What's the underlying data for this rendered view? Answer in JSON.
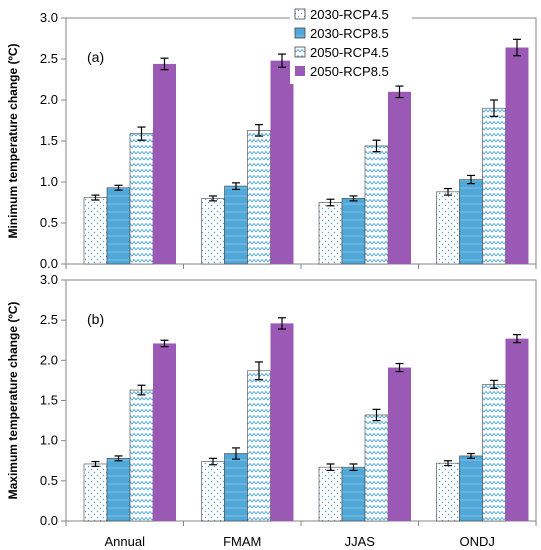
{
  "chart_data": [
    {
      "type": "bar",
      "panel_label": "(a)",
      "ylabel": "Minimum temperature change (ºC)",
      "ylim": [
        0,
        3.0
      ],
      "yticks": [
        "0.0",
        "0.5",
        "1.0",
        "1.5",
        "2.0",
        "2.5",
        "3.0"
      ],
      "grid": false,
      "categories": [
        "Annual",
        "FMAM",
        "JJAS",
        "ONDJ"
      ],
      "series": [
        {
          "name": "2030-RCP4.5",
          "values": [
            0.81,
            0.8,
            0.75,
            0.88
          ],
          "errors": [
            0.03,
            0.03,
            0.04,
            0.04
          ]
        },
        {
          "name": "2030-RCP8.5",
          "values": [
            0.93,
            0.95,
            0.8,
            1.03
          ],
          "errors": [
            0.03,
            0.04,
            0.03,
            0.05
          ]
        },
        {
          "name": "2050-RCP4.5",
          "values": [
            1.59,
            1.63,
            1.44,
            1.9
          ],
          "errors": [
            0.08,
            0.07,
            0.07,
            0.1
          ]
        },
        {
          "name": "2050-RCP8.5",
          "values": [
            2.44,
            2.48,
            2.1,
            2.64
          ],
          "errors": [
            0.07,
            0.08,
            0.07,
            0.1
          ]
        }
      ],
      "legend": {
        "placement": "top-right"
      }
    },
    {
      "type": "bar",
      "panel_label": "(b)",
      "ylabel": "Maximum temperature change (ºC)",
      "ylim": [
        0,
        3.0
      ],
      "yticks": [
        "0.0",
        "0.5",
        "1.0",
        "1.5",
        "2.0",
        "2.5",
        "3.0"
      ],
      "grid": false,
      "categories": [
        "Annual",
        "FMAM",
        "JJAS",
        "ONDJ"
      ],
      "series": [
        {
          "name": "2030-RCP4.5",
          "values": [
            0.71,
            0.74,
            0.67,
            0.72
          ],
          "errors": [
            0.03,
            0.04,
            0.04,
            0.03
          ]
        },
        {
          "name": "2030-RCP8.5",
          "values": [
            0.78,
            0.84,
            0.67,
            0.81
          ],
          "errors": [
            0.03,
            0.07,
            0.04,
            0.03
          ]
        },
        {
          "name": "2050-RCP4.5",
          "values": [
            1.63,
            1.87,
            1.32,
            1.7
          ],
          "errors": [
            0.06,
            0.11,
            0.07,
            0.05
          ]
        },
        {
          "name": "2050-RCP8.5",
          "values": [
            2.21,
            2.46,
            1.91,
            2.27
          ],
          "errors": [
            0.04,
            0.07,
            0.05,
            0.05
          ]
        }
      ]
    }
  ],
  "styles": {
    "series_colors": [
      "#ffffff",
      "#4fa8d8",
      "#ffffff",
      "#9b59b6"
    ],
    "series_patterns": [
      "dots",
      "solid",
      "zigzag",
      "solid"
    ],
    "pattern_colors": [
      "#5b9bd5",
      "#9fd2ee",
      "#4fa8d8",
      "#9b59b6"
    ],
    "bar_outline": "#444444",
    "axis_color": "#868686",
    "error_bar_color": "#000000"
  }
}
